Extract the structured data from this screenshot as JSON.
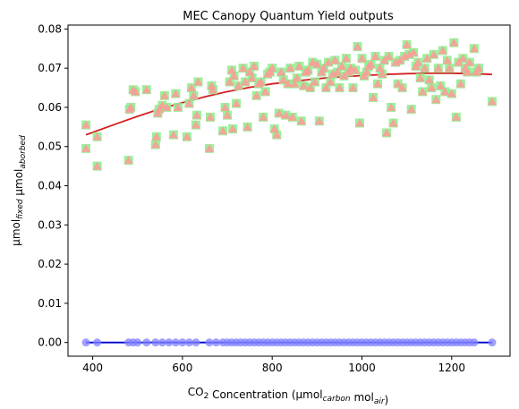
{
  "chart_data": {
    "type": "scatter",
    "title": "MEC Canopy Quantum Yield outputs",
    "xlabel": {
      "parts": [
        {
          "text": "CO",
          "style": "normal"
        },
        {
          "text": "2",
          "style": "sub"
        },
        {
          "text": " Concentration (µmol",
          "style": "normal"
        },
        {
          "text": "carbon",
          "style": "sub-italic"
        },
        {
          "text": " mol",
          "style": "normal"
        },
        {
          "text": "air",
          "style": "sub-italic"
        },
        {
          "text": ")",
          "style": "normal"
        }
      ]
    },
    "ylabel": {
      "parts": [
        {
          "text": "µmol",
          "style": "normal"
        },
        {
          "text": "fixed",
          "style": "sub-italic"
        },
        {
          "text": " µmol",
          "style": "normal"
        },
        {
          "text": "aborbed",
          "style": "sub-italic"
        }
      ]
    },
    "xlim": [
      345,
      1330
    ],
    "ylim": [
      -0.0035,
      0.081
    ],
    "xticks": [
      400,
      600,
      800,
      1000,
      1200
    ],
    "yticks": [
      0.0,
      0.01,
      0.02,
      0.03,
      0.04,
      0.05,
      0.06,
      0.07,
      0.08
    ],
    "ytick_labels": [
      "0.00",
      "0.01",
      "0.02",
      "0.03",
      "0.04",
      "0.05",
      "0.06",
      "0.07",
      "0.08"
    ],
    "colors": {
      "square_markers": "#90ee90",
      "triangle_markers": "#ff9999",
      "fit_line": "#d42020",
      "circle_markers": "#8080ff",
      "baseline": "#0000cc"
    },
    "series": [
      {
        "marker": "square+triangle",
        "points": [
          [
            385,
            0.0495
          ],
          [
            385,
            0.0555
          ],
          [
            410,
            0.045
          ],
          [
            410,
            0.0525
          ],
          [
            480,
            0.0465
          ],
          [
            482,
            0.0595
          ],
          [
            485,
            0.06
          ],
          [
            490,
            0.0645
          ],
          [
            495,
            0.064
          ],
          [
            520,
            0.0645
          ],
          [
            540,
            0.0505
          ],
          [
            542,
            0.0525
          ],
          [
            545,
            0.0585
          ],
          [
            548,
            0.0595
          ],
          [
            555,
            0.0605
          ],
          [
            560,
            0.063
          ],
          [
            565,
            0.06
          ],
          [
            580,
            0.053
          ],
          [
            585,
            0.0635
          ],
          [
            590,
            0.06
          ],
          [
            610,
            0.0525
          ],
          [
            615,
            0.061
          ],
          [
            620,
            0.065
          ],
          [
            625,
            0.063
          ],
          [
            630,
            0.0555
          ],
          [
            632,
            0.058
          ],
          [
            635,
            0.0665
          ],
          [
            660,
            0.0495
          ],
          [
            662,
            0.0575
          ],
          [
            665,
            0.0655
          ],
          [
            668,
            0.0645
          ],
          [
            690,
            0.054
          ],
          [
            695,
            0.06
          ],
          [
            700,
            0.058
          ],
          [
            705,
            0.0665
          ],
          [
            710,
            0.0695
          ],
          [
            712,
            0.0545
          ],
          [
            715,
            0.068
          ],
          [
            720,
            0.061
          ],
          [
            725,
            0.0655
          ],
          [
            735,
            0.07
          ],
          [
            740,
            0.0665
          ],
          [
            745,
            0.055
          ],
          [
            750,
            0.069
          ],
          [
            755,
            0.0675
          ],
          [
            760,
            0.0705
          ],
          [
            765,
            0.063
          ],
          [
            770,
            0.066
          ],
          [
            775,
            0.0665
          ],
          [
            780,
            0.0575
          ],
          [
            785,
            0.064
          ],
          [
            790,
            0.0685
          ],
          [
            795,
            0.069
          ],
          [
            800,
            0.07
          ],
          [
            805,
            0.0545
          ],
          [
            810,
            0.053
          ],
          [
            815,
            0.0585
          ],
          [
            820,
            0.069
          ],
          [
            825,
            0.067
          ],
          [
            830,
            0.058
          ],
          [
            835,
            0.066
          ],
          [
            840,
            0.07
          ],
          [
            845,
            0.0575
          ],
          [
            850,
            0.066
          ],
          [
            855,
            0.0675
          ],
          [
            860,
            0.0705
          ],
          [
            865,
            0.0565
          ],
          [
            870,
            0.0655
          ],
          [
            875,
            0.069
          ],
          [
            880,
            0.0695
          ],
          [
            885,
            0.065
          ],
          [
            890,
            0.0715
          ],
          [
            895,
            0.0665
          ],
          [
            900,
            0.071
          ],
          [
            905,
            0.0565
          ],
          [
            910,
            0.069
          ],
          [
            915,
            0.07
          ],
          [
            920,
            0.065
          ],
          [
            925,
            0.0715
          ],
          [
            930,
            0.0665
          ],
          [
            935,
            0.0685
          ],
          [
            940,
            0.072
          ],
          [
            945,
            0.069
          ],
          [
            950,
            0.065
          ],
          [
            955,
            0.0705
          ],
          [
            960,
            0.068
          ],
          [
            965,
            0.0725
          ],
          [
            970,
            0.069
          ],
          [
            975,
            0.07
          ],
          [
            980,
            0.065
          ],
          [
            985,
            0.0695
          ],
          [
            990,
            0.0755
          ],
          [
            995,
            0.056
          ],
          [
            1000,
            0.0725
          ],
          [
            1005,
            0.068
          ],
          [
            1010,
            0.069
          ],
          [
            1015,
            0.0705
          ],
          [
            1020,
            0.071
          ],
          [
            1025,
            0.0625
          ],
          [
            1030,
            0.073
          ],
          [
            1035,
            0.066
          ],
          [
            1040,
            0.07
          ],
          [
            1045,
            0.0685
          ],
          [
            1050,
            0.072
          ],
          [
            1055,
            0.0535
          ],
          [
            1060,
            0.073
          ],
          [
            1065,
            0.06
          ],
          [
            1070,
            0.056
          ],
          [
            1075,
            0.0715
          ],
          [
            1080,
            0.066
          ],
          [
            1085,
            0.072
          ],
          [
            1090,
            0.065
          ],
          [
            1095,
            0.073
          ],
          [
            1100,
            0.076
          ],
          [
            1105,
            0.0735
          ],
          [
            1110,
            0.0595
          ],
          [
            1115,
            0.074
          ],
          [
            1120,
            0.0705
          ],
          [
            1125,
            0.0715
          ],
          [
            1130,
            0.0675
          ],
          [
            1135,
            0.064
          ],
          [
            1140,
            0.07
          ],
          [
            1145,
            0.0725
          ],
          [
            1150,
            0.067
          ],
          [
            1155,
            0.065
          ],
          [
            1160,
            0.0735
          ],
          [
            1165,
            0.062
          ],
          [
            1170,
            0.07
          ],
          [
            1175,
            0.0655
          ],
          [
            1180,
            0.0745
          ],
          [
            1185,
            0.064
          ],
          [
            1190,
            0.072
          ],
          [
            1195,
            0.07
          ],
          [
            1200,
            0.0635
          ],
          [
            1205,
            0.0765
          ],
          [
            1210,
            0.0575
          ],
          [
            1215,
            0.0715
          ],
          [
            1220,
            0.066
          ],
          [
            1225,
            0.0725
          ],
          [
            1230,
            0.07
          ],
          [
            1235,
            0.069
          ],
          [
            1240,
            0.0715
          ],
          [
            1250,
            0.075
          ],
          [
            1255,
            0.069
          ],
          [
            1260,
            0.07
          ],
          [
            1290,
            0.0615
          ]
        ]
      },
      {
        "marker": "circle",
        "points": [
          [
            385,
            0.0
          ],
          [
            410,
            0.0
          ],
          [
            480,
            0.0
          ],
          [
            490,
            0.0
          ],
          [
            500,
            0.0
          ],
          [
            520,
            0.0
          ],
          [
            540,
            0.0
          ],
          [
            555,
            0.0
          ],
          [
            570,
            0.0
          ],
          [
            585,
            0.0
          ],
          [
            600,
            0.0
          ],
          [
            615,
            0.0
          ],
          [
            630,
            0.0
          ],
          [
            660,
            0.0
          ],
          [
            675,
            0.0
          ],
          [
            690,
            0.0
          ],
          [
            700,
            0.0
          ],
          [
            710,
            0.0
          ],
          [
            720,
            0.0
          ],
          [
            730,
            0.0
          ],
          [
            740,
            0.0
          ],
          [
            750,
            0.0
          ],
          [
            760,
            0.0
          ],
          [
            770,
            0.0
          ],
          [
            780,
            0.0
          ],
          [
            790,
            0.0
          ],
          [
            800,
            0.0
          ],
          [
            810,
            0.0
          ],
          [
            820,
            0.0
          ],
          [
            830,
            0.0
          ],
          [
            840,
            0.0
          ],
          [
            850,
            0.0
          ],
          [
            860,
            0.0
          ],
          [
            870,
            0.0
          ],
          [
            880,
            0.0
          ],
          [
            890,
            0.0
          ],
          [
            900,
            0.0
          ],
          [
            910,
            0.0
          ],
          [
            920,
            0.0
          ],
          [
            930,
            0.0
          ],
          [
            940,
            0.0
          ],
          [
            950,
            0.0
          ],
          [
            960,
            0.0
          ],
          [
            970,
            0.0
          ],
          [
            980,
            0.0
          ],
          [
            990,
            0.0
          ],
          [
            1000,
            0.0
          ],
          [
            1010,
            0.0
          ],
          [
            1020,
            0.0
          ],
          [
            1030,
            0.0
          ],
          [
            1040,
            0.0
          ],
          [
            1050,
            0.0
          ],
          [
            1060,
            0.0
          ],
          [
            1070,
            0.0
          ],
          [
            1080,
            0.0
          ],
          [
            1090,
            0.0
          ],
          [
            1100,
            0.0
          ],
          [
            1110,
            0.0
          ],
          [
            1120,
            0.0
          ],
          [
            1130,
            0.0
          ],
          [
            1140,
            0.0
          ],
          [
            1150,
            0.0
          ],
          [
            1160,
            0.0
          ],
          [
            1170,
            0.0
          ],
          [
            1180,
            0.0
          ],
          [
            1190,
            0.0
          ],
          [
            1200,
            0.0
          ],
          [
            1210,
            0.0
          ],
          [
            1220,
            0.0
          ],
          [
            1230,
            0.0
          ],
          [
            1240,
            0.0
          ],
          [
            1250,
            0.0
          ],
          [
            1290,
            0.0
          ]
        ]
      },
      {
        "marker": "line",
        "points": [
          [
            385,
            0.053
          ],
          [
            450,
            0.0557
          ],
          [
            500,
            0.0577
          ],
          [
            550,
            0.0596
          ],
          [
            600,
            0.0612
          ],
          [
            650,
            0.0627
          ],
          [
            700,
            0.064
          ],
          [
            750,
            0.0651
          ],
          [
            800,
            0.066
          ],
          [
            850,
            0.0667
          ],
          [
            900,
            0.0673
          ],
          [
            950,
            0.0678
          ],
          [
            1000,
            0.0681
          ],
          [
            1050,
            0.0684
          ],
          [
            1100,
            0.0686
          ],
          [
            1150,
            0.0687
          ],
          [
            1200,
            0.0687
          ],
          [
            1250,
            0.0686
          ],
          [
            1290,
            0.0684
          ]
        ]
      },
      {
        "marker": "line",
        "points": [
          [
            385,
            0.0
          ],
          [
            1290,
            0.0
          ]
        ]
      }
    ]
  }
}
